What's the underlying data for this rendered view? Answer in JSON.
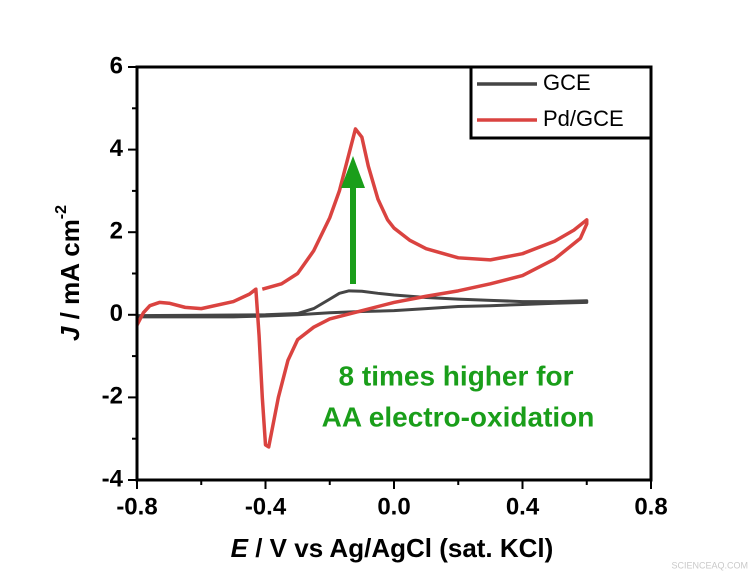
{
  "chart_data": {
    "type": "line",
    "x_label": {
      "symbol": "E",
      "unit": " / V vs Ag/AgCl (sat. KCl)"
    },
    "y_label": {
      "symbol": "J",
      "unit": " / mA cm",
      "exponent": "-2"
    },
    "xlim": [
      -0.8,
      0.8
    ],
    "ylim": [
      -4,
      6
    ],
    "xticks": [
      -0.8,
      -0.4,
      {
        "value": 0,
        "label": "0.0"
      },
      0.4,
      0.8
    ],
    "yticks": [
      -4,
      -2,
      0,
      2,
      4,
      6
    ],
    "xminorticks": [
      -0.6,
      -0.2,
      0.2,
      0.6
    ],
    "yminorticks": [
      -3,
      -1,
      1,
      3,
      5
    ],
    "legend": "top-right",
    "series": [
      {
        "name": "GCE",
        "color": "#454545",
        "x": [
          -0.8,
          -0.6,
          -0.4,
          -0.3,
          -0.25,
          -0.2,
          -0.17,
          -0.14,
          -0.1,
          -0.05,
          0,
          0.1,
          0.2,
          0.3,
          0.4,
          0.5,
          0.6,
          0.6,
          0.5,
          0.4,
          0.3,
          0.2,
          0.1,
          0,
          -0.1,
          -0.2,
          -0.3,
          -0.4,
          -0.5,
          -0.6,
          -0.8
        ],
        "values": [
          -0.02,
          -0.01,
          0,
          0.03,
          0.15,
          0.38,
          0.52,
          0.58,
          0.57,
          0.52,
          0.48,
          0.42,
          0.38,
          0.35,
          0.32,
          0.32,
          0.34,
          0.3,
          0.28,
          0.25,
          0.22,
          0.2,
          0.15,
          0.1,
          0.08,
          0.05,
          0.0,
          -0.03,
          -0.05,
          -0.05,
          -0.05
        ]
      },
      {
        "name": "Pd/GCE",
        "color": "#da4340",
        "x": [
          -0.41,
          -0.35,
          -0.3,
          -0.25,
          -0.2,
          -0.17,
          -0.15,
          -0.13,
          -0.12,
          -0.1,
          -0.08,
          -0.05,
          -0.02,
          0,
          0.05,
          0.1,
          0.2,
          0.3,
          0.4,
          0.5,
          0.56,
          0.6,
          0.6,
          0.58,
          0.5,
          0.4,
          0.3,
          0.2,
          0.1,
          0,
          -0.1,
          -0.2,
          -0.25,
          -0.3,
          -0.33,
          -0.36,
          -0.38,
          -0.39,
          -0.4,
          -0.41,
          -0.42,
          -0.43,
          -0.45,
          -0.5,
          -0.6,
          -0.65,
          -0.7,
          -0.73,
          -0.76,
          -0.78,
          -0.8
        ],
        "values": [
          0.62,
          0.75,
          1.0,
          1.55,
          2.35,
          3.0,
          3.6,
          4.2,
          4.5,
          4.3,
          3.6,
          2.8,
          2.3,
          2.1,
          1.8,
          1.6,
          1.38,
          1.33,
          1.48,
          1.78,
          2.05,
          2.3,
          2.2,
          1.85,
          1.35,
          0.95,
          0.75,
          0.58,
          0.45,
          0.3,
          0.1,
          -0.1,
          -0.3,
          -0.6,
          -1.1,
          -2.0,
          -2.8,
          -3.2,
          -3.15,
          -2.0,
          -0.5,
          0.62,
          0.5,
          0.32,
          0.15,
          0.18,
          0.28,
          0.3,
          0.22,
          0.05,
          -0.25
        ]
      }
    ],
    "annotation": [
      "8 times higher for",
      "AA electro-oxidation"
    ]
  },
  "watermark": "SCIENCEAQ.COM"
}
